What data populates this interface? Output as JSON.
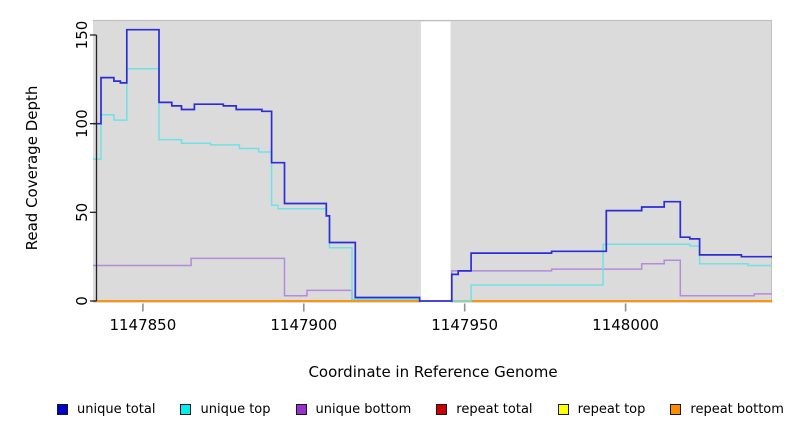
{
  "chart_data": {
    "type": "line",
    "subtype": "step-coverage",
    "title": "",
    "xlabel": "Coordinate in Reference Genome",
    "ylabel": "Read Coverage Depth",
    "x_ticks": [
      1147850,
      1147900,
      1147950,
      1148000
    ],
    "x_tick_labels": [
      "1147850",
      "1147900",
      "1147950",
      "1148000"
    ],
    "y_ticks": [
      0,
      50,
      100,
      150
    ],
    "y_tick_labels": [
      "0",
      "50",
      "100",
      "150"
    ],
    "xlim": [
      1147834.5,
      1148045.5
    ],
    "ylim": [
      0,
      153
    ],
    "grid": "off",
    "legend_position": "bottom",
    "panel_bg": "#DBDBDB",
    "panel_border_color": "#C0C0C0",
    "axis_color": "#222222",
    "x_tick_color": "#909090",
    "gap_region": {
      "x_start": 1147936.4,
      "x_end": 1147945.6,
      "color": "#FFFFFF"
    },
    "series": [
      {
        "name": "repeat total",
        "line_color": "#CC0000",
        "legend_color": "#CC0000",
        "draw_order": 1,
        "clipped_by_gap": true,
        "steps": [
          [
            1147834.5,
            0
          ]
        ]
      },
      {
        "name": "repeat top",
        "line_color": "#FFFF00",
        "legend_color": "#FFFF00",
        "draw_order": 2,
        "clipped_by_gap": true,
        "steps": [
          [
            1147834.5,
            0
          ]
        ]
      },
      {
        "name": "repeat bottom",
        "line_color": "#FF8C00",
        "legend_color": "#FF8C00",
        "draw_order": 3,
        "clipped_by_gap": true,
        "steps": [
          [
            1147834.5,
            0
          ]
        ]
      },
      {
        "name": "unique bottom",
        "line_color": "#B48BD8",
        "legend_color": "#9932CC",
        "draw_order": 4,
        "clipped_by_gap": true,
        "steps": [
          [
            1147834.5,
            20
          ],
          [
            1147865,
            24
          ],
          [
            1147894,
            3
          ],
          [
            1147901,
            6
          ],
          [
            1147915,
            1
          ],
          [
            1147936,
            0
          ],
          [
            1147946,
            17
          ],
          [
            1147977,
            18
          ],
          [
            1148005,
            21
          ],
          [
            1148012,
            23
          ],
          [
            1148017,
            3
          ],
          [
            1148040,
            4
          ]
        ]
      },
      {
        "name": "unique top",
        "line_color": "#70E1E4",
        "legend_color": "#00EEEE",
        "draw_order": 5,
        "clipped_by_gap": true,
        "steps": [
          [
            1147834.5,
            80
          ],
          [
            1147837,
            105
          ],
          [
            1147841,
            102
          ],
          [
            1147845,
            131
          ],
          [
            1147855,
            91
          ],
          [
            1147862,
            89
          ],
          [
            1147871,
            88
          ],
          [
            1147880,
            86
          ],
          [
            1147886,
            84
          ],
          [
            1147890,
            54
          ],
          [
            1147892,
            52
          ],
          [
            1147907,
            48
          ],
          [
            1147908,
            30
          ],
          [
            1147915,
            1
          ],
          [
            1147936,
            0
          ],
          [
            1147952,
            9
          ],
          [
            1147993,
            32
          ],
          [
            1148020,
            31
          ],
          [
            1148023,
            21
          ],
          [
            1148038,
            20
          ]
        ]
      },
      {
        "name": "unique total",
        "line_color": "#2D2DD8",
        "legend_color": "#0000CD",
        "draw_order": 6,
        "clipped_by_gap": false,
        "steps": [
          [
            1147834.5,
            100
          ],
          [
            1147837,
            126
          ],
          [
            1147841,
            124
          ],
          [
            1147843,
            123
          ],
          [
            1147845,
            153
          ],
          [
            1147855,
            112
          ],
          [
            1147859,
            110
          ],
          [
            1147862,
            108
          ],
          [
            1147866,
            111
          ],
          [
            1147875,
            110
          ],
          [
            1147879,
            108
          ],
          [
            1147887,
            107
          ],
          [
            1147890,
            78
          ],
          [
            1147894,
            55
          ],
          [
            1147907,
            48
          ],
          [
            1147908,
            33
          ],
          [
            1147916,
            2
          ],
          [
            1147936,
            0
          ],
          [
            1147946,
            15
          ],
          [
            1147948,
            17
          ],
          [
            1147952,
            27
          ],
          [
            1147977,
            28
          ],
          [
            1147994,
            51
          ],
          [
            1148005,
            53
          ],
          [
            1148012,
            56
          ],
          [
            1148017,
            36
          ],
          [
            1148020,
            35
          ],
          [
            1148023,
            26
          ],
          [
            1148036,
            25
          ]
        ]
      }
    ],
    "legend_order": [
      "unique total",
      "unique top",
      "unique bottom",
      "repeat total",
      "repeat top",
      "repeat bottom"
    ]
  }
}
